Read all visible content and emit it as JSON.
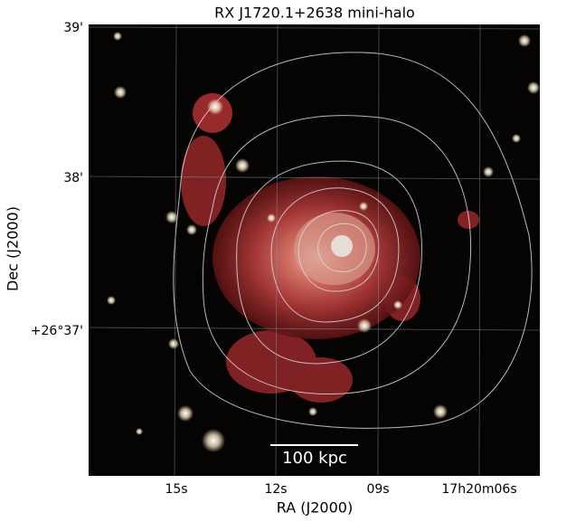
{
  "figure": {
    "title": "RX J1720.1+2638 mini-halo",
    "x_label": "RA (J2000)",
    "y_label": "Dec (J2000)",
    "x_ticks": [
      "15s",
      "12s",
      "09s",
      "17h20m06s"
    ],
    "y_ticks": [
      "39'",
      "38'",
      "+26°37'"
    ],
    "scale_bar_label": "100 kpc"
  }
}
